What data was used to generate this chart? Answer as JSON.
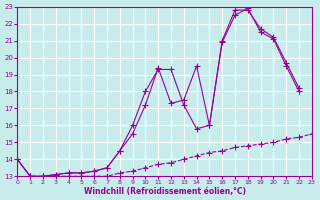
{
  "xlabel": "Windchill (Refroidissement éolien,°C)",
  "background_color": "#c8ecec",
  "grid_color": "#ffffff",
  "line_color": "#990099",
  "xlim": [
    0,
    23
  ],
  "ylim": [
    13,
    23
  ],
  "xticks": [
    0,
    1,
    2,
    3,
    4,
    5,
    6,
    7,
    8,
    9,
    10,
    11,
    12,
    13,
    14,
    15,
    16,
    17,
    18,
    19,
    20,
    21,
    22,
    23
  ],
  "yticks": [
    13,
    14,
    15,
    16,
    17,
    18,
    19,
    20,
    21,
    22,
    23
  ],
  "line1_x": [
    0,
    1,
    2,
    3,
    4,
    5,
    6,
    7,
    8,
    9,
    10,
    11,
    12,
    13,
    14,
    15,
    16,
    17,
    18,
    19,
    20,
    21,
    22,
    23
  ],
  "line1_y": [
    14.0,
    13.0,
    13.0,
    13.0,
    13.0,
    13.0,
    13.0,
    13.0,
    13.2,
    13.3,
    13.5,
    13.7,
    13.8,
    14.0,
    14.2,
    14.4,
    14.5,
    14.7,
    14.8,
    14.9,
    15.0,
    15.2,
    15.3,
    15.5
  ],
  "line2_x": [
    0,
    1,
    2,
    3,
    4,
    5,
    6,
    7,
    8,
    9,
    10,
    11,
    12,
    13,
    14,
    15,
    16,
    17,
    18,
    19,
    20,
    21,
    22
  ],
  "line2_y": [
    14.0,
    13.0,
    13.0,
    13.1,
    13.2,
    13.2,
    13.3,
    13.5,
    14.5,
    15.5,
    17.2,
    19.4,
    17.3,
    17.5,
    19.5,
    16.0,
    21.0,
    22.8,
    22.8,
    21.7,
    21.2,
    19.7,
    18.2
  ],
  "line3_x": [
    0,
    1,
    2,
    3,
    4,
    5,
    6,
    7,
    8,
    9,
    10,
    11,
    12,
    13,
    14,
    15,
    16,
    17,
    18,
    19,
    20,
    21,
    22
  ],
  "line3_y": [
    14.0,
    13.0,
    13.0,
    13.1,
    13.2,
    13.2,
    13.3,
    13.5,
    14.5,
    16.0,
    18.0,
    19.3,
    19.3,
    17.2,
    15.8,
    16.0,
    20.9,
    22.5,
    22.9,
    21.5,
    21.1,
    19.5,
    18.0
  ]
}
